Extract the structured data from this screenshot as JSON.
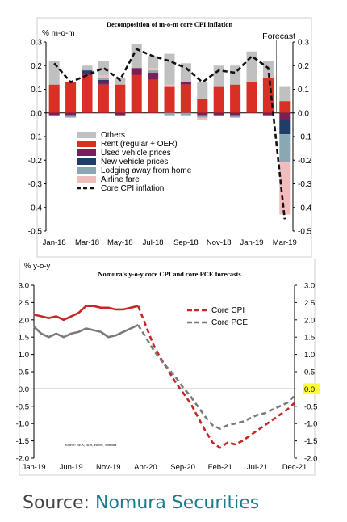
{
  "source_caption": {
    "prefix": "Source:",
    "org": "Nomura Securities"
  },
  "chart_data": [
    {
      "type": "bar",
      "stacked": true,
      "title": "Decomposition of m-o-m core CPI inflation",
      "ylabel": "% m-o-m",
      "ylim": [
        -0.5,
        0.3
      ],
      "yticks": [
        0.3,
        0.2,
        0.1,
        0.0,
        -0.1,
        -0.2,
        -0.3,
        -0.4,
        -0.5
      ],
      "yticks_left_labels": [
        "0.3",
        "0.2",
        "0.1",
        "0.0",
        "-0.1",
        "-0.2",
        "-0.3",
        "-0.4",
        "-0.5"
      ],
      "yticks_right_labels": [
        "0.3",
        "0.2",
        "0.1",
        "0.0",
        "-0.1",
        "-0.2",
        "-0.3",
        "-0.4",
        "-0.5"
      ],
      "x_tick_labels": [
        "Jan-18",
        "Mar-18",
        "May-18",
        "Jul-18",
        "Sep-18",
        "Nov-18",
        "Jan-19",
        "Mar-19"
      ],
      "categories": [
        "Jan-18",
        "Feb-18",
        "Mar-18",
        "Apr-18",
        "May-18",
        "Jun-18",
        "Jul-18",
        "Aug-18",
        "Sep-18",
        "Oct-18",
        "Nov-18",
        "Dec-18",
        "Jan-19",
        "Feb-19",
        "Mar-19"
      ],
      "forecast_label": "Forecast",
      "forecast_start_index": 14,
      "legend_position": "bottom-left",
      "series": [
        {
          "name": "Rent (regular + OER)",
          "color": "#d93025",
          "values": [
            0.12,
            0.13,
            0.16,
            0.12,
            0.12,
            0.16,
            0.14,
            0.11,
            0.12,
            0.06,
            0.11,
            0.12,
            0.13,
            0.15,
            0.05
          ]
        },
        {
          "name": "Used vehicle prices",
          "color": "#7b1f5a",
          "values": [
            -0.01,
            -0.01,
            0.01,
            0.01,
            -0.01,
            0.03,
            0.03,
            0.0,
            0.01,
            -0.01,
            -0.01,
            -0.01,
            0.0,
            -0.01,
            -0.03
          ]
        },
        {
          "name": "New vehicle prices",
          "color": "#1f3d66",
          "values": [
            0.0,
            0.0,
            0.01,
            0.01,
            0.0,
            0.0,
            0.0,
            0.0,
            0.0,
            0.0,
            0.0,
            0.0,
            0.0,
            0.0,
            -0.06
          ]
        },
        {
          "name": "Lodging away from home",
          "color": "#8aa8b4",
          "values": [
            0.0,
            -0.01,
            0.0,
            0.01,
            0.0,
            0.0,
            0.01,
            -0.01,
            -0.01,
            -0.01,
            0.0,
            -0.01,
            0.0,
            0.0,
            -0.12
          ]
        },
        {
          "name": "Airline fare",
          "color": "#f2bcbc",
          "values": [
            0.0,
            0.0,
            0.0,
            0.01,
            0.0,
            0.0,
            0.01,
            0.01,
            0.0,
            -0.01,
            0.0,
            0.0,
            0.0,
            0.0,
            -0.22
          ]
        },
        {
          "name": "Others",
          "color": "#c0c0c0",
          "values": [
            0.1,
            0.0,
            0.02,
            0.06,
            0.03,
            0.1,
            0.05,
            0.13,
            0.08,
            0.07,
            0.09,
            0.08,
            0.13,
            0.07,
            0.06
          ]
        }
      ],
      "legend_order": [
        "Others",
        "Rent (regular + OER)",
        "Used vehicle prices",
        "New vehicle prices",
        "Lodging away from home",
        "Airline fare",
        "Core CPI inflation"
      ],
      "line": {
        "name": "Core CPI inflation",
        "color": "#111111",
        "style": "dashed",
        "values": [
          0.21,
          0.13,
          0.16,
          0.19,
          0.14,
          0.27,
          0.24,
          0.22,
          0.19,
          0.13,
          0.18,
          0.17,
          0.24,
          0.19,
          -0.45
        ]
      }
    },
    {
      "type": "line",
      "title": "Nomura's y-o-y core CPI and core PCE forecasts",
      "ylabel": "% y-o-y",
      "ylim": [
        -2.0,
        3.0
      ],
      "yticks": [
        3.0,
        2.5,
        2.0,
        1.5,
        1.0,
        0.5,
        0.0,
        -0.5,
        -1.0,
        -1.5,
        -2.0
      ],
      "yticks_left_labels": [
        "3.0",
        "2.5",
        "2.0",
        "1.5",
        "1.0",
        "0.5",
        "0.0",
        "-0.5",
        "-1.0",
        "-1.5",
        "-2.0"
      ],
      "yticks_right_labels": [
        "3.0",
        "2.5",
        "2.0",
        "1.5",
        "1.0",
        "0.5",
        "0.0",
        "-0.5",
        "-1.0",
        "-1.5",
        "-2.0"
      ],
      "highlight_tick_right": "0.0",
      "highlight_color": "#ffff33",
      "x_tick_labels": [
        "Jan-19",
        "Jun-19",
        "Nov-19",
        "Apr-20",
        "Sep-20",
        "Feb-21",
        "Jul-21",
        "Dec-21"
      ],
      "x_start": "Jan-19",
      "n_months": 36,
      "forecast_start_index": 14,
      "source_note": "Source: BEA, BLS, Haver, Nomura",
      "legend_position": "top-right",
      "series": [
        {
          "name": "Core CPI",
          "color": "#c62828",
          "values": [
            2.15,
            2.1,
            2.05,
            2.1,
            2.0,
            2.1,
            2.2,
            2.4,
            2.4,
            2.35,
            2.35,
            2.3,
            2.3,
            2.35,
            2.4,
            1.85,
            1.3,
            0.9,
            0.55,
            0.2,
            -0.1,
            -0.4,
            -0.8,
            -1.2,
            -1.55,
            -1.7,
            -1.55,
            -1.6,
            -1.5,
            -1.35,
            -1.2,
            -1.05,
            -0.9,
            -0.75,
            -0.6,
            -0.4
          ]
        },
        {
          "name": "Core PCE",
          "color": "#7a7a7a",
          "values": [
            1.8,
            1.6,
            1.5,
            1.6,
            1.5,
            1.6,
            1.65,
            1.75,
            1.7,
            1.65,
            1.5,
            1.55,
            1.65,
            1.75,
            1.85,
            1.5,
            1.15,
            0.85,
            0.6,
            0.35,
            0.05,
            -0.2,
            -0.5,
            -0.8,
            -1.05,
            -1.15,
            -1.05,
            -1.0,
            -0.95,
            -0.85,
            -0.75,
            -0.7,
            -0.6,
            -0.5,
            -0.4,
            -0.2
          ]
        }
      ]
    }
  ]
}
